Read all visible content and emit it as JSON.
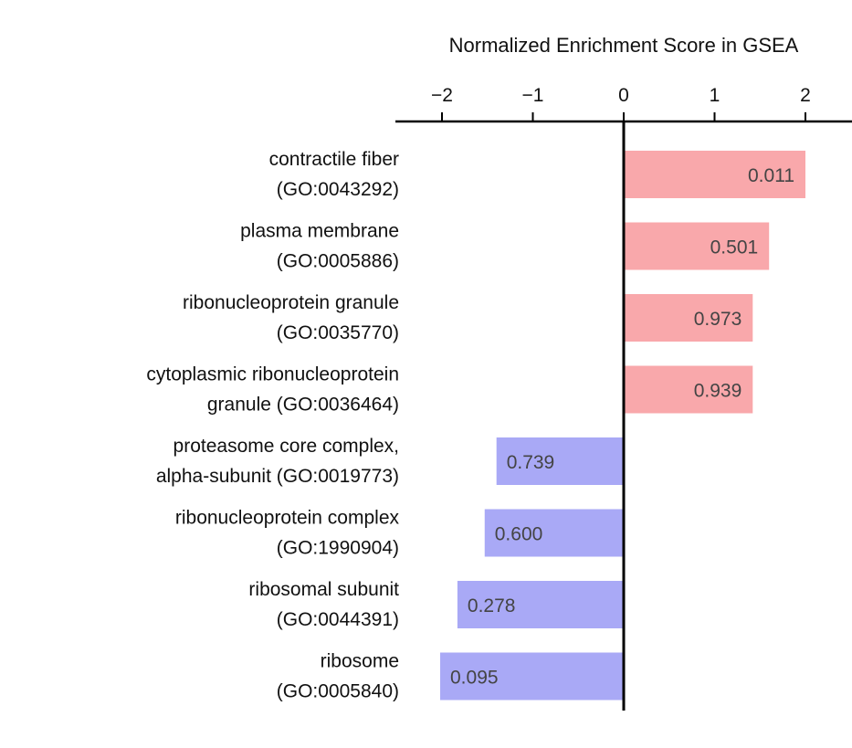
{
  "chart_data": {
    "type": "bar",
    "orientation": "horizontal",
    "title": "",
    "xlabel": "Normalized Enrichment Score in GSEA",
    "ylabel": "",
    "xlim": [
      -2,
      2
    ],
    "xticks": [
      -2,
      -1,
      0,
      1,
      2
    ],
    "xtick_labels": [
      "−2",
      "−1",
      "0",
      "1",
      "2"
    ],
    "categories": [
      {
        "line1": "contractile fiber",
        "line2": "(GO:0043292)"
      },
      {
        "line1": "plasma membrane",
        "line2": "(GO:0005886)"
      },
      {
        "line1": "ribonucleoprotein granule",
        "line2": "(GO:0035770)"
      },
      {
        "line1": "cytoplasmic ribonucleoprotein",
        "line2": "granule (GO:0036464)"
      },
      {
        "line1": "proteasome core complex,",
        "line2": "alpha-subunit (GO:0019773)"
      },
      {
        "line1": "ribonucleoprotein complex",
        "line2": "(GO:1990904)"
      },
      {
        "line1": "ribosomal subunit",
        "line2": "(GO:0044391)"
      },
      {
        "line1": "ribosome",
        "line2": "(GO:0005840)"
      }
    ],
    "values": [
      2.0,
      1.6,
      1.42,
      1.42,
      -1.4,
      -1.53,
      -1.83,
      -2.02
    ],
    "data_labels": [
      "0.011",
      "0.501",
      "0.973",
      "0.939",
      "0.739",
      "0.600",
      "0.278",
      "0.095"
    ],
    "colors": {
      "positive": "#f9a8ab",
      "negative": "#a9a9f6"
    },
    "grid": false,
    "legend": "none"
  }
}
